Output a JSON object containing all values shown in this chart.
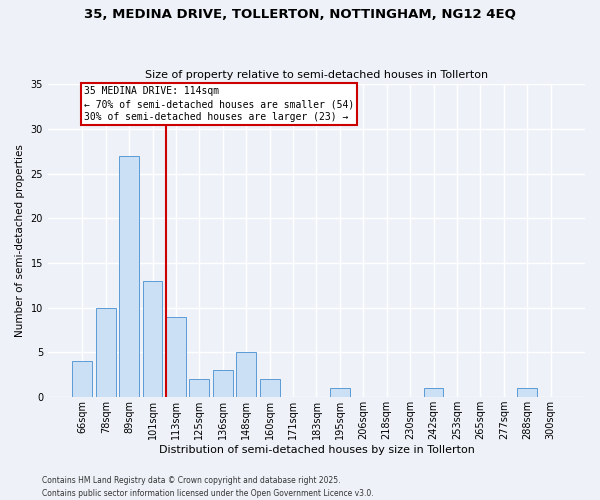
{
  "title": "35, MEDINA DRIVE, TOLLERTON, NOTTINGHAM, NG12 4EQ",
  "subtitle": "Size of property relative to semi-detached houses in Tollerton",
  "xlabel": "Distribution of semi-detached houses by size in Tollerton",
  "ylabel": "Number of semi-detached properties",
  "categories": [
    "66sqm",
    "78sqm",
    "89sqm",
    "101sqm",
    "113sqm",
    "125sqm",
    "136sqm",
    "148sqm",
    "160sqm",
    "171sqm",
    "183sqm",
    "195sqm",
    "206sqm",
    "218sqm",
    "230sqm",
    "242sqm",
    "253sqm",
    "265sqm",
    "277sqm",
    "288sqm",
    "300sqm"
  ],
  "values": [
    4,
    10,
    27,
    13,
    9,
    2,
    3,
    5,
    2,
    0,
    0,
    1,
    0,
    0,
    0,
    1,
    0,
    0,
    0,
    1,
    0
  ],
  "bar_color": "#cce0f5",
  "bar_edge_color": "#5b9bd5",
  "vline_x_index": 4,
  "vline_color": "#cc0000",
  "annotation_line1": "35 MEDINA DRIVE: 114sqm",
  "annotation_line2": "← 70% of semi-detached houses are smaller (54)",
  "annotation_line3": "30% of semi-detached houses are larger (23) →",
  "ylim": [
    0,
    35
  ],
  "yticks": [
    0,
    5,
    10,
    15,
    20,
    25,
    30,
    35
  ],
  "background_color": "#eef2f8",
  "grid_color": "#ffffff",
  "footer_line1": "Contains HM Land Registry data © Crown copyright and database right 2025.",
  "footer_line2": "Contains public sector information licensed under the Open Government Licence v3.0."
}
